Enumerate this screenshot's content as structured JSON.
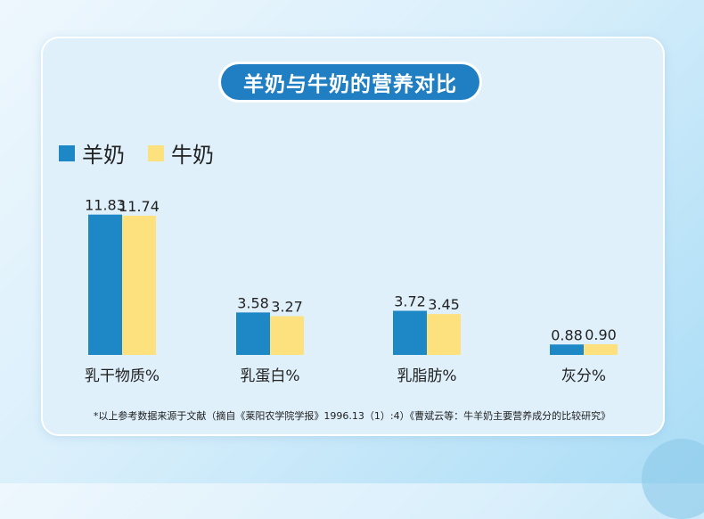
{
  "header": {
    "title": "羊奶与牛奶的营养对比"
  },
  "chart_data": {
    "type": "bar",
    "categories": [
      "乳干物质%",
      "乳蛋白%",
      "乳脂肪%",
      "灰分%"
    ],
    "series": [
      {
        "name": "羊奶",
        "values": [
          11.83,
          3.58,
          3.72,
          0.88
        ],
        "color": "#1e88c6"
      },
      {
        "name": "牛奶",
        "values": [
          11.74,
          3.27,
          3.45,
          0.9
        ],
        "color": "#fde17e"
      }
    ],
    "value_labels": [
      [
        "11.83",
        "3.58",
        "3.72",
        "0.88"
      ],
      [
        "11.74",
        "3.27",
        "3.45",
        "0.90"
      ]
    ],
    "title": "",
    "xlabel": "",
    "ylabel": "",
    "ylim": [
      0,
      12
    ],
    "grid": false,
    "legend_position": "top-left"
  },
  "footnote": "*以上参考数据来源于文献（摘自《莱阳农学院学报》1996.13（1）:4）《曹斌云等：牛羊奶主要营养成分的比较研究》"
}
